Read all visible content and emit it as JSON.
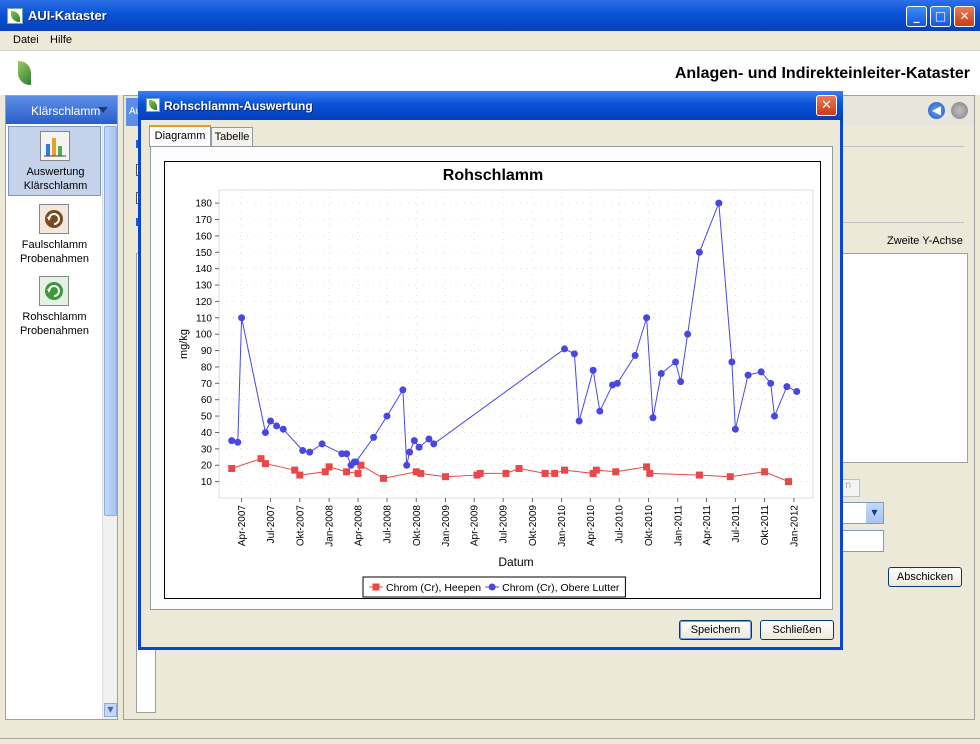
{
  "app": {
    "title": "AUI-Kataster",
    "header_title": "Anlagen- und Indirekteinleiter-Kataster"
  },
  "menu": {
    "items": [
      "Datei",
      "Hilfe"
    ]
  },
  "nav": {
    "header": "Klärschlamm",
    "items": [
      {
        "label_line1": "Auswertung",
        "label_line2": "Klärschlamm",
        "icon": "bar-chart-icon",
        "selected": true
      },
      {
        "label_line1": "Faulschlamm",
        "label_line2": "Probenahmen",
        "icon": "refresh-icon",
        "selected": false
      },
      {
        "label_line1": "Rohschlamm",
        "label_line2": "Probenahmen",
        "icon": "refresh-green-icon",
        "selected": false
      }
    ]
  },
  "background_panel": {
    "tab_fragment": "Au",
    "second_axis_label": "Zweite Y-Achse",
    "submit_label": "Abschicken",
    "disabled_field_fragment": "n"
  },
  "dialog": {
    "title": "Rohschlamm-Auswertung",
    "tabs": [
      {
        "label": "Diagramm",
        "active": true
      },
      {
        "label": "Tabelle",
        "active": false
      }
    ],
    "save_label": "Speichern",
    "close_label": "Schließen"
  },
  "chart_data": {
    "type": "line",
    "title": "Rohschlamm",
    "xlabel": "Datum",
    "ylabel": "mg/kg",
    "ylim": [
      0,
      188
    ],
    "yticks": [
      10,
      20,
      30,
      40,
      50,
      60,
      70,
      80,
      90,
      100,
      110,
      120,
      130,
      140,
      150,
      160,
      170,
      180
    ],
    "xticks": [
      "Apr-2007",
      "Jul-2007",
      "Okt-2007",
      "Jan-2008",
      "Apr-2008",
      "Jul-2008",
      "Okt-2008",
      "Jan-2009",
      "Apr-2009",
      "Jul-2009",
      "Okt-2009",
      "Jan-2010",
      "Apr-2010",
      "Jul-2010",
      "Okt-2010",
      "Jan-2011",
      "Apr-2011",
      "Jul-2011",
      "Okt-2011",
      "Jan-2012"
    ],
    "grid": true,
    "legend_position": "bottom",
    "colors": {
      "heepen": "#e84848",
      "obere_lutter": "#4848e0",
      "gridline": "#c8c8c8"
    },
    "series": [
      {
        "name": "Chrom (Cr), Heepen",
        "marker": "square",
        "points": [
          [
            "2007-03-01",
            18
          ],
          [
            "2007-06-01",
            24
          ],
          [
            "2007-06-15",
            21
          ],
          [
            "2007-09-15",
            17
          ],
          [
            "2007-10-01",
            14
          ],
          [
            "2007-12-20",
            16
          ],
          [
            "2008-01-01",
            19
          ],
          [
            "2008-02-25",
            16
          ],
          [
            "2008-04-01",
            15
          ],
          [
            "2008-04-10",
            20
          ],
          [
            "2008-06-20",
            12
          ],
          [
            "2008-10-01",
            16
          ],
          [
            "2008-10-15",
            15
          ],
          [
            "2009-01-01",
            13
          ],
          [
            "2009-04-10",
            14
          ],
          [
            "2009-04-20",
            15
          ],
          [
            "2009-07-10",
            15
          ],
          [
            "2009-08-20",
            18
          ],
          [
            "2009-11-10",
            15
          ],
          [
            "2009-12-10",
            15
          ],
          [
            "2010-01-10",
            17
          ],
          [
            "2010-04-10",
            15
          ],
          [
            "2010-04-20",
            17
          ],
          [
            "2010-06-20",
            16
          ],
          [
            "2010-09-25",
            19
          ],
          [
            "2010-10-05",
            15
          ],
          [
            "2011-03-10",
            14
          ],
          [
            "2011-06-15",
            13
          ],
          [
            "2011-10-01",
            16
          ],
          [
            "2011-12-15",
            10
          ]
        ]
      },
      {
        "name": "Chrom (Cr), Obere Lutter",
        "marker": "circle",
        "points": [
          [
            "2007-03-01",
            35
          ],
          [
            "2007-03-20",
            34
          ],
          [
            "2007-04-01",
            110
          ],
          [
            "2007-06-15",
            40
          ],
          [
            "2007-07-01",
            47
          ],
          [
            "2007-07-20",
            44
          ],
          [
            "2007-08-10",
            42
          ],
          [
            "2007-10-10",
            29
          ],
          [
            "2007-11-01",
            28
          ],
          [
            "2007-12-10",
            33
          ],
          [
            "2008-02-10",
            27
          ],
          [
            "2008-02-25",
            27
          ],
          [
            "2008-03-10",
            20
          ],
          [
            "2008-03-20",
            22
          ],
          [
            "2008-03-25",
            22
          ],
          [
            "2008-05-20",
            37
          ],
          [
            "2008-07-01",
            50
          ],
          [
            "2008-08-20",
            66
          ],
          [
            "2008-09-01",
            20
          ],
          [
            "2008-09-10",
            28
          ],
          [
            "2008-09-25",
            35
          ],
          [
            "2008-10-10",
            31
          ],
          [
            "2008-11-10",
            36
          ],
          [
            "2008-11-25",
            33
          ],
          [
            "2010-01-10",
            91
          ],
          [
            "2010-02-10",
            88
          ],
          [
            "2010-02-25",
            47
          ],
          [
            "2010-04-10",
            78
          ],
          [
            "2010-05-01",
            53
          ],
          [
            "2010-06-10",
            69
          ],
          [
            "2010-06-25",
            70
          ],
          [
            "2010-08-20",
            87
          ],
          [
            "2010-09-25",
            110
          ],
          [
            "2010-10-15",
            49
          ],
          [
            "2010-11-10",
            76
          ],
          [
            "2010-12-25",
            83
          ],
          [
            "2011-01-10",
            71
          ],
          [
            "2011-02-01",
            100
          ],
          [
            "2011-03-10",
            150
          ],
          [
            "2011-05-10",
            180
          ],
          [
            "2011-06-20",
            83
          ],
          [
            "2011-07-01",
            42
          ],
          [
            "2011-08-10",
            75
          ],
          [
            "2011-09-20",
            77
          ],
          [
            "2011-10-20",
            70
          ],
          [
            "2011-11-01",
            50
          ],
          [
            "2011-12-10",
            68
          ],
          [
            "2012-01-10",
            65
          ]
        ]
      }
    ]
  }
}
